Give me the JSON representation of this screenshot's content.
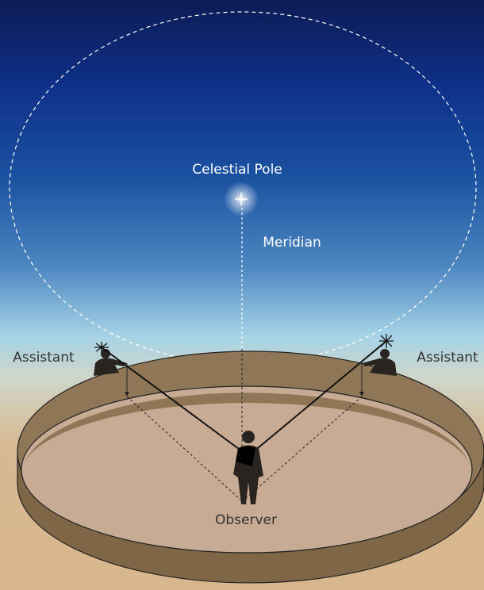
{
  "labels": {
    "pole": "Celestial Pole",
    "meridian": "Meridian",
    "assistant_left": "Assistant",
    "assistant_right": "Assistant",
    "observer": "Observer"
  }
}
